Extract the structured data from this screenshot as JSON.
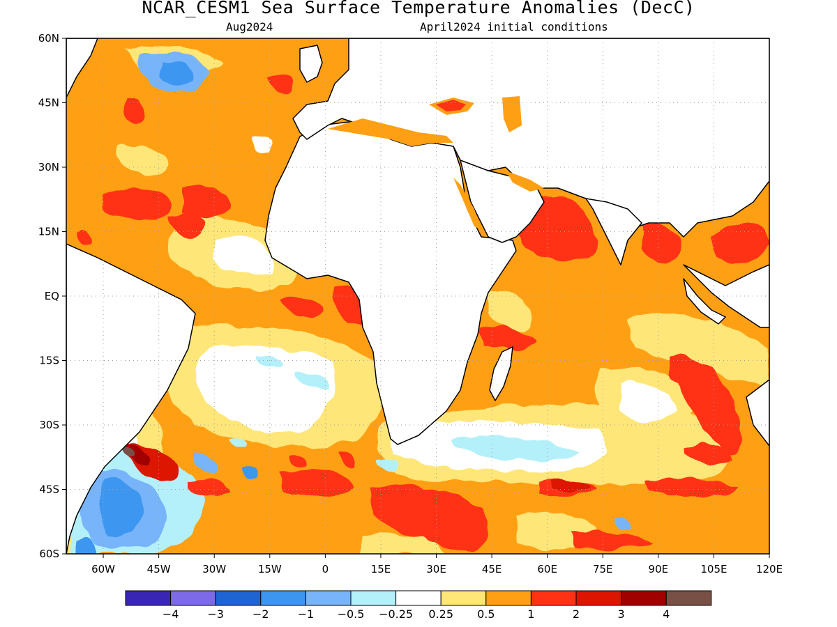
{
  "title": "NCAR_CESM1 Sea Surface Temperature Anomalies (DecC)",
  "subtitle_left": "Aug2024",
  "subtitle_right": "April2024 initial conditions",
  "map": {
    "lon_range": [
      -70,
      120
    ],
    "lat_range": [
      -60,
      60
    ],
    "lat_ticks": [
      "60N",
      "45N",
      "30N",
      "15N",
      "EQ",
      "15S",
      "30S",
      "45S",
      "60S"
    ],
    "lon_ticks": [
      "60W",
      "45W",
      "30W",
      "15W",
      "0",
      "15E",
      "30E",
      "45E",
      "60E",
      "75E",
      "90E",
      "105E",
      "120E"
    ],
    "gridlines": "dotted"
  },
  "colorbar": {
    "colors": [
      "#3a26b4",
      "#7d6ae6",
      "#1e64d2",
      "#3c96f0",
      "#78b4fa",
      "#b4f0fa",
      "#ffffff",
      "#ffe678",
      "#ffa014",
      "#ff3214",
      "#dc1400",
      "#a00000",
      "#785046"
    ],
    "labels": [
      "−4",
      "−3",
      "−2",
      "−1",
      "−0.5",
      "−0.25",
      "0.25",
      "0.5",
      "1",
      "2",
      "3",
      "4"
    ]
  },
  "colors": {
    "land": "#ffffff",
    "ocean_base": "#ffa014",
    "coastline": "#000000"
  }
}
